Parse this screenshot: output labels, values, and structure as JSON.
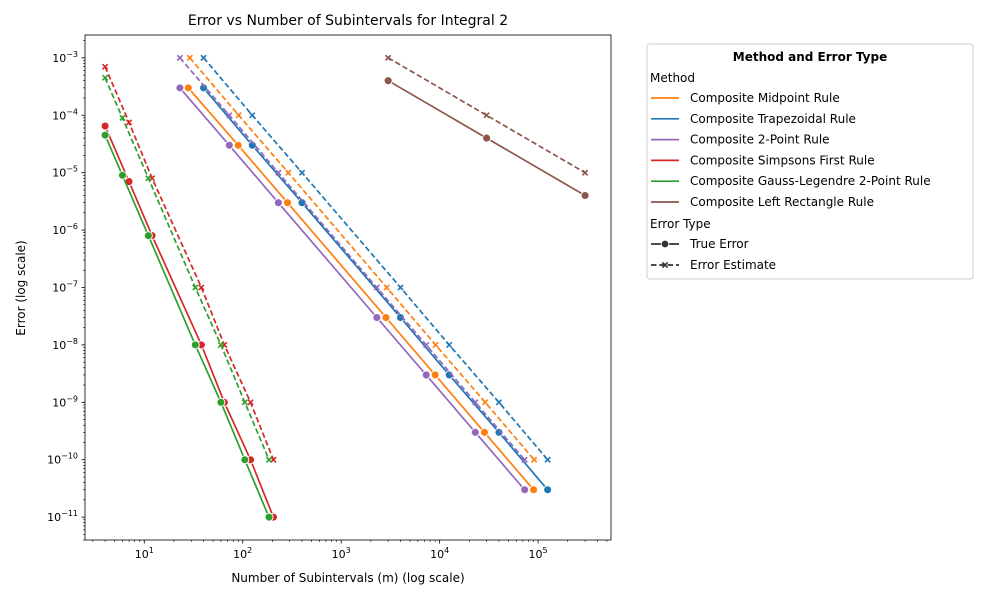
{
  "chart_data": {
    "type": "line",
    "title": "Error vs Number of Subintervals for Integral 2",
    "xlabel": "Number of Subintervals (m) (log scale)",
    "ylabel": "Error (log scale)",
    "x_scale": "log",
    "y_scale": "log",
    "xlim": [
      2.5,
      550000
    ],
    "ylim": [
      4e-12,
      0.0025
    ],
    "x_ticks": [
      {
        "value": 10,
        "base": "10",
        "exp": "1"
      },
      {
        "value": 100,
        "base": "10",
        "exp": "2"
      },
      {
        "value": 1000,
        "base": "10",
        "exp": "3"
      },
      {
        "value": 10000,
        "base": "10",
        "exp": "4"
      },
      {
        "value": 100000,
        "base": "10",
        "exp": "5"
      }
    ],
    "y_ticks": [
      {
        "value": 1e-11,
        "base": "10",
        "exp": "−11"
      },
      {
        "value": 1e-10,
        "base": "10",
        "exp": "−10"
      },
      {
        "value": 1e-09,
        "base": "10",
        "exp": "−9"
      },
      {
        "value": 1e-08,
        "base": "10",
        "exp": "−8"
      },
      {
        "value": 1e-07,
        "base": "10",
        "exp": "−7"
      },
      {
        "value": 1e-06,
        "base": "10",
        "exp": "−6"
      },
      {
        "value": 1e-05,
        "base": "10",
        "exp": "−5"
      },
      {
        "value": 0.0001,
        "base": "10",
        "exp": "−4"
      },
      {
        "value": 0.001,
        "base": "10",
        "exp": "−3"
      }
    ],
    "grid": false,
    "legend_position": "outside-right",
    "series": [
      {
        "method": "Composite Midpoint Rule",
        "color": "#ff7f0e",
        "true_error": {
          "x": [
            28,
            90,
            285,
            2850,
            9000,
            28500,
            90000
          ],
          "y": [
            0.0003,
            3e-05,
            3e-06,
            3e-08,
            3e-09,
            3e-10,
            3e-11
          ]
        },
        "error_estimate": {
          "x": [
            29,
            91,
            290,
            2900,
            9100,
            29000,
            91000
          ],
          "y": [
            0.001,
            0.0001,
            1e-05,
            1e-07,
            1e-08,
            1e-09,
            1e-10
          ]
        }
      },
      {
        "method": "Composite Trapezoidal Rule",
        "color": "#1f77b4",
        "true_error": {
          "x": [
            40,
            125,
            400,
            4000,
            12500,
            40000,
            125000
          ],
          "y": [
            0.0003,
            3e-05,
            3e-06,
            3e-08,
            3e-09,
            3e-10,
            3e-11
          ]
        },
        "error_estimate": {
          "x": [
            40,
            125,
            400,
            4000,
            12500,
            40000,
            125000
          ],
          "y": [
            0.001,
            0.0001,
            1e-05,
            1e-07,
            1e-08,
            1e-09,
            1e-10
          ]
        }
      },
      {
        "method": "Composite 2-Point Rule",
        "color": "#9467bd",
        "true_error": {
          "x": [
            23,
            73,
            230,
            2300,
            7300,
            23000,
            73000
          ],
          "y": [
            0.0003,
            3e-05,
            3e-06,
            3e-08,
            3e-09,
            3e-10,
            3e-11
          ]
        },
        "error_estimate": {
          "x": [
            23,
            73,
            230,
            2300,
            7300,
            23000,
            73000
          ],
          "y": [
            0.001,
            0.0001,
            1e-05,
            1e-07,
            1e-08,
            1e-09,
            1e-10
          ]
        }
      },
      {
        "method": "Composite Simpsons First Rule",
        "color": "#d62728",
        "true_error": {
          "x": [
            4,
            7,
            12,
            38,
            65,
            120,
            205
          ],
          "y": [
            6.5e-05,
            7e-06,
            8e-07,
            1e-08,
            1e-09,
            1e-10,
            1e-11
          ]
        },
        "error_estimate": {
          "x": [
            4,
            7,
            12,
            38,
            65,
            120,
            205
          ],
          "y": [
            0.0007,
            7.5e-05,
            8e-06,
            1e-07,
            1e-08,
            1e-09,
            1e-10
          ]
        }
      },
      {
        "method": "Composite Gauss-Legendre 2-Point Rule",
        "color": "#2ca02c",
        "true_error": {
          "x": [
            4,
            6,
            11,
            33,
            60,
            105,
            185
          ],
          "y": [
            4.5e-05,
            9e-06,
            8e-07,
            1e-08,
            1e-09,
            1e-10,
            1e-11
          ]
        },
        "error_estimate": {
          "x": [
            4,
            6,
            11,
            33,
            60,
            105,
            185
          ],
          "y": [
            0.00045,
            9e-05,
            8e-06,
            1e-07,
            1e-08,
            1e-09,
            1e-10
          ]
        }
      },
      {
        "method": "Composite Left Rectangle Rule",
        "color": "#8c564b",
        "true_error": {
          "x": [
            3000,
            30000,
            300000
          ],
          "y": [
            0.0004,
            4e-05,
            4e-06
          ]
        },
        "error_estimate": {
          "x": [
            3000,
            30000,
            300000
          ],
          "y": [
            0.001,
            0.0001,
            1e-05
          ]
        }
      }
    ]
  },
  "legend": {
    "title": "Method and Error Type",
    "method_header": "Method",
    "methods": [
      {
        "label": "Composite Midpoint Rule",
        "color": "#ff7f0e"
      },
      {
        "label": "Composite Trapezoidal Rule",
        "color": "#1f77b4"
      },
      {
        "label": "Composite 2-Point Rule",
        "color": "#9467bd"
      },
      {
        "label": "Composite Simpsons First Rule",
        "color": "#d62728"
      },
      {
        "label": "Composite Gauss-Legendre 2-Point Rule",
        "color": "#2ca02c"
      },
      {
        "label": "Composite Left Rectangle Rule",
        "color": "#8c564b"
      }
    ],
    "error_type_header": "Error Type",
    "error_types": [
      {
        "label": "True Error",
        "style": "solid",
        "marker": "circle"
      },
      {
        "label": "Error Estimate",
        "style": "dashed",
        "marker": "x"
      }
    ]
  }
}
